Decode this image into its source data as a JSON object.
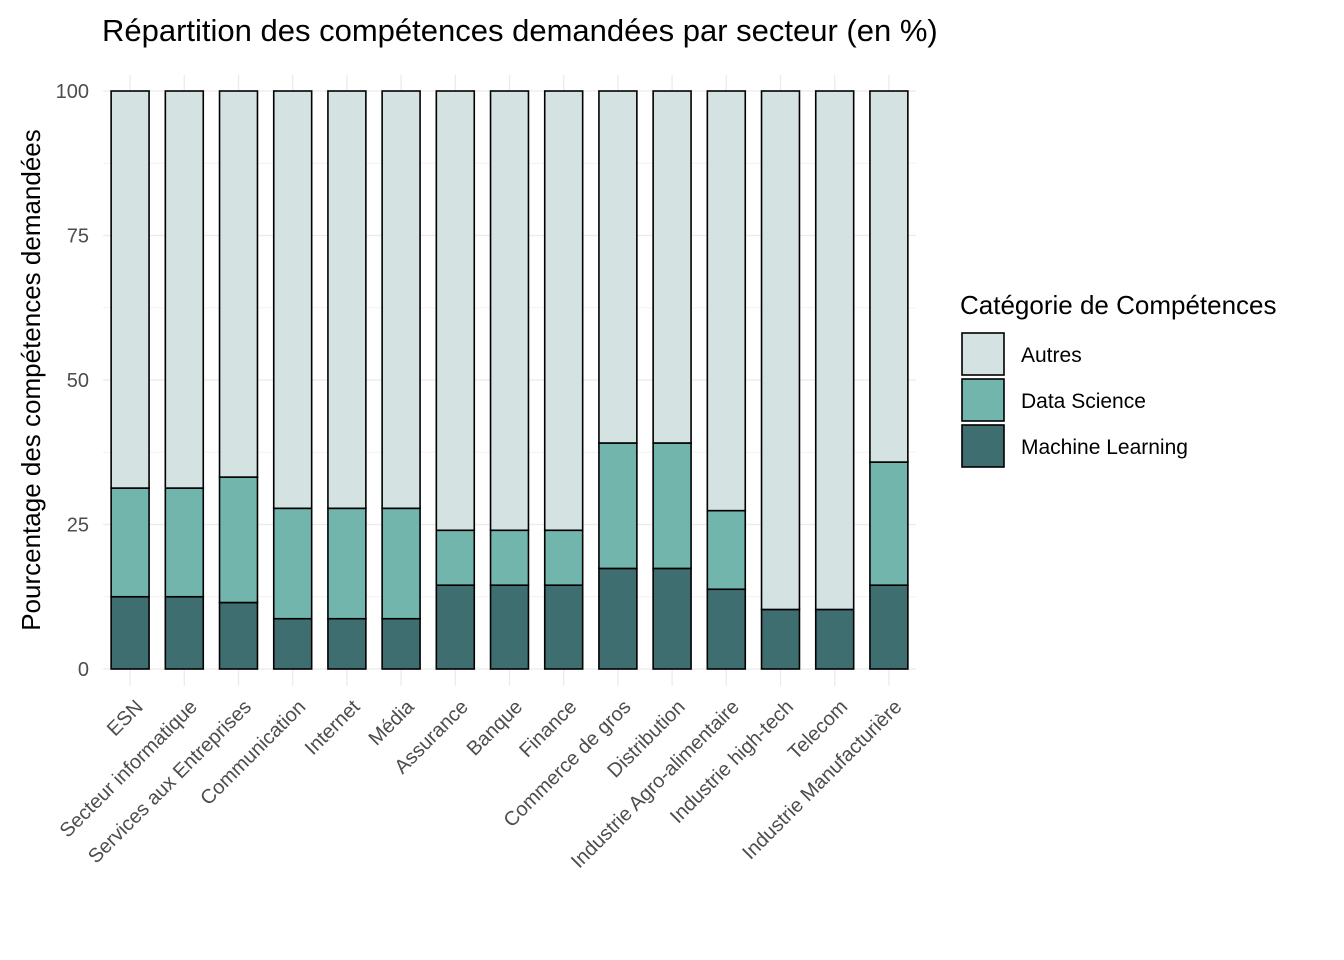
{
  "chart_data": {
    "type": "bar",
    "stacked": true,
    "title": "Répartition des compétences demandées par secteur (en %)",
    "xlabel": "",
    "ylabel": "Pourcentage des compétences demandées",
    "ylim": [
      0,
      100
    ],
    "yticks": [
      0,
      25,
      50,
      75,
      100
    ],
    "grid": true,
    "legend": {
      "title": "Catégorie de Compétences",
      "position": "right"
    },
    "categories": [
      "ESN",
      "Secteur informatique",
      "Services aux Entreprises",
      "Communication",
      "Internet",
      "Média",
      "Assurance",
      "Banque",
      "Finance",
      "Commerce de gros",
      "Distribution",
      "Industrie Agro-alimentaire",
      "Industrie high-tech",
      "Telecom",
      "Industrie Manufacturière"
    ],
    "series": [
      {
        "name": "Machine Learning",
        "color": "#3f6e70",
        "values": [
          12.5,
          12.5,
          11.5,
          8.7,
          8.7,
          8.7,
          14.5,
          14.5,
          14.5,
          17.4,
          17.4,
          13.8,
          10.3,
          10.3,
          14.5
        ]
      },
      {
        "name": "Data Science",
        "color": "#72b5ad",
        "values": [
          18.8,
          18.8,
          21.7,
          19.1,
          19.1,
          19.1,
          9.5,
          9.5,
          9.5,
          21.7,
          21.7,
          13.6,
          0,
          0,
          21.3
        ]
      },
      {
        "name": "Autres",
        "color": "#d4e2e2",
        "values": [
          68.7,
          68.7,
          66.8,
          72.2,
          72.2,
          72.2,
          76.0,
          76.0,
          76.0,
          60.9,
          60.9,
          72.6,
          89.7,
          89.7,
          64.2
        ]
      }
    ],
    "legend_order": [
      "Autres",
      "Data Science",
      "Machine Learning"
    ]
  }
}
